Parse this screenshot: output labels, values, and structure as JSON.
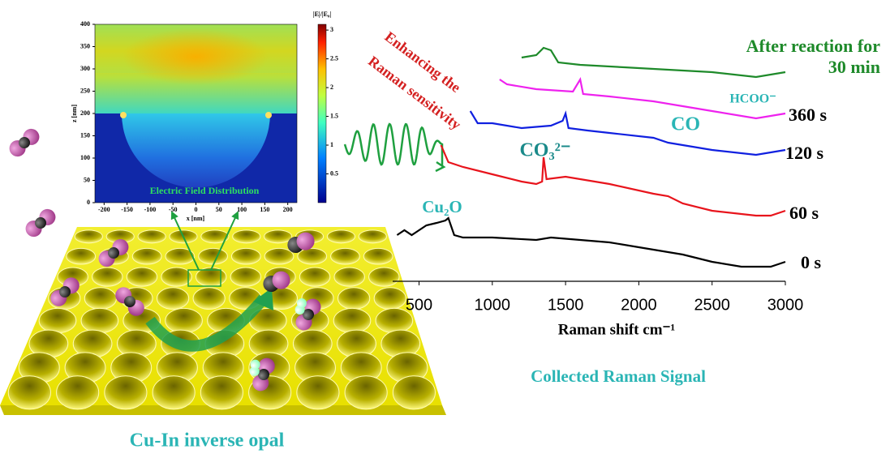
{
  "chart_data": [
    {
      "type": "heatmap",
      "title": "Electric Field Distribution",
      "x_label": "x [nm]",
      "y_label": "z [nm]",
      "xlim": [
        -220,
        220
      ],
      "xticks": [
        -200,
        -150,
        -100,
        -50,
        0,
        50,
        100,
        150,
        200
      ],
      "ylim": [
        0,
        400
      ],
      "yticks": [
        0,
        50,
        100,
        150,
        200,
        250,
        300,
        350,
        400
      ],
      "colorbar_label": "|E|/|E₀|",
      "clim": [
        0,
        3.1
      ],
      "cticks": [
        0.5,
        1,
        1.5,
        2,
        2.5,
        3
      ]
    },
    {
      "type": "line",
      "title": "Collected Raman Signal",
      "x_label": "Raman shift cm⁻¹",
      "xlim": [
        320,
        3000
      ],
      "xticks": [
        500,
        1000,
        1500,
        2000,
        2500,
        3000
      ],
      "ylim": [
        0,
        100
      ],
      "series": [
        {
          "name": "0 s",
          "color": "#000000",
          "x": [
            350,
            400,
            450,
            550,
            620,
            680,
            700,
            740,
            800,
            1000,
            1300,
            1400,
            1600,
            1800,
            2000,
            2300,
            2500,
            2700,
            2900,
            3000
          ],
          "values": [
            19,
            21,
            19,
            23,
            24,
            25,
            26,
            19,
            18,
            18,
            17,
            18,
            17,
            16,
            14,
            11,
            8,
            6,
            6,
            8
          ]
        },
        {
          "name": "60 s",
          "color": "#e8141c",
          "x": [
            650,
            700,
            800,
            1000,
            1200,
            1300,
            1340,
            1350,
            1370,
            1500,
            1800,
            2100,
            2200,
            2300,
            2500,
            2800,
            2900,
            3000
          ],
          "values": [
            56,
            49,
            47,
            44,
            41,
            40,
            41,
            51,
            42,
            43,
            40,
            36,
            35,
            32,
            29,
            27,
            27,
            29
          ]
        },
        {
          "name": "120 s",
          "color": "#1020e0",
          "x": [
            850,
            900,
            1000,
            1200,
            1400,
            1480,
            1500,
            1520,
            1650,
            1800,
            2100,
            2200,
            2300,
            2500,
            2800,
            2900,
            3000
          ],
          "values": [
            70,
            65,
            65,
            63,
            64,
            66,
            69,
            63,
            62,
            61,
            59,
            57,
            56,
            54,
            52,
            53,
            54
          ]
        },
        {
          "name": "360 s",
          "color": "#ee22ee",
          "x": [
            1050,
            1100,
            1300,
            1550,
            1600,
            1620,
            1800,
            2100,
            2300,
            2500,
            2800,
            2900,
            3000
          ],
          "values": [
            83,
            81,
            79,
            78,
            83,
            77,
            76,
            74,
            72,
            70,
            67,
            68,
            69
          ]
        },
        {
          "name": "After reaction for 30 min",
          "color": "#1e8a2a",
          "x": [
            1200,
            1300,
            1350,
            1400,
            1450,
            1600,
            1900,
            2200,
            2500,
            2800,
            3000
          ],
          "values": [
            92,
            93,
            96,
            95,
            90,
            89,
            88,
            87,
            86,
            84,
            86
          ]
        }
      ],
      "annotations": [
        "Cu₂O",
        "CO₃²⁻",
        "CO",
        "HCOO⁻",
        "Enhancing the",
        "Raman sensitivity"
      ]
    }
  ],
  "illustration": {
    "label": "Cu-In inverse opal"
  }
}
